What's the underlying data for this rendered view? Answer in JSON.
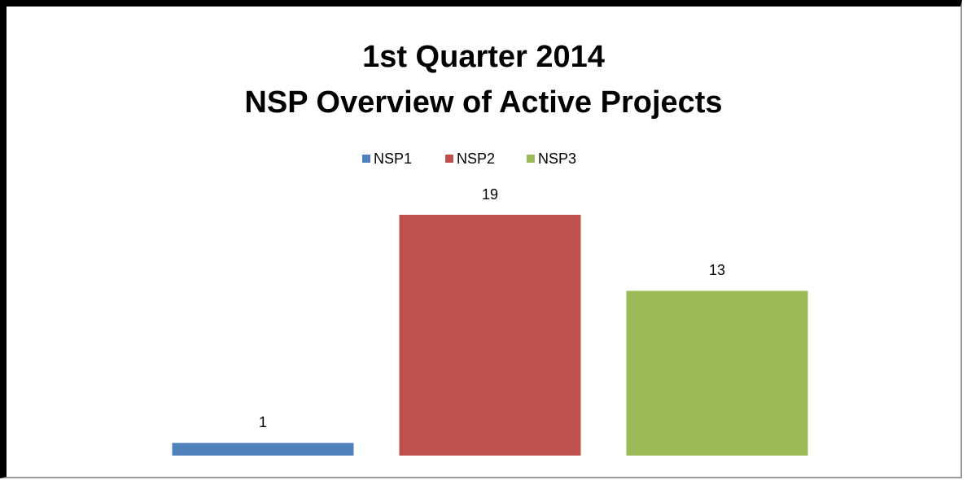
{
  "chart_data": {
    "type": "bar",
    "title": "1st Quarter 2014\nNSP Overview of Active Projects",
    "categories": [
      null
    ],
    "series": [
      {
        "name": "NSP1",
        "color": "#4f81bd",
        "values": [
          1
        ]
      },
      {
        "name": "NSP2",
        "color": "#c0504d",
        "values": [
          19
        ]
      },
      {
        "name": "NSP3",
        "color": "#9bbb59",
        "values": [
          13
        ]
      }
    ],
    "legend": "top",
    "grid": false
  }
}
